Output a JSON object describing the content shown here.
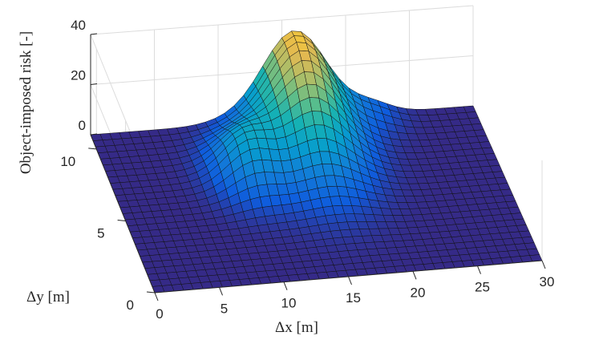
{
  "chart_data": {
    "type": "surface",
    "title": "",
    "xlabel": "Δx [m]",
    "ylabel": "Δy [m]",
    "zlabel": "Object-imposed risk [-]",
    "xlim": [
      0,
      30
    ],
    "ylim": [
      0,
      11
    ],
    "zlim": [
      0,
      40
    ],
    "xticks": [
      0,
      5,
      10,
      15,
      20,
      25,
      30
    ],
    "yticks": [
      0,
      5,
      10
    ],
    "zticks": [
      0,
      20,
      40
    ],
    "grid": true,
    "colormap": "parula",
    "surface_function": {
      "description": "Risk surface peak",
      "peak_x": 16,
      "peak_y": 10.5,
      "peak_risk": 36
    }
  }
}
